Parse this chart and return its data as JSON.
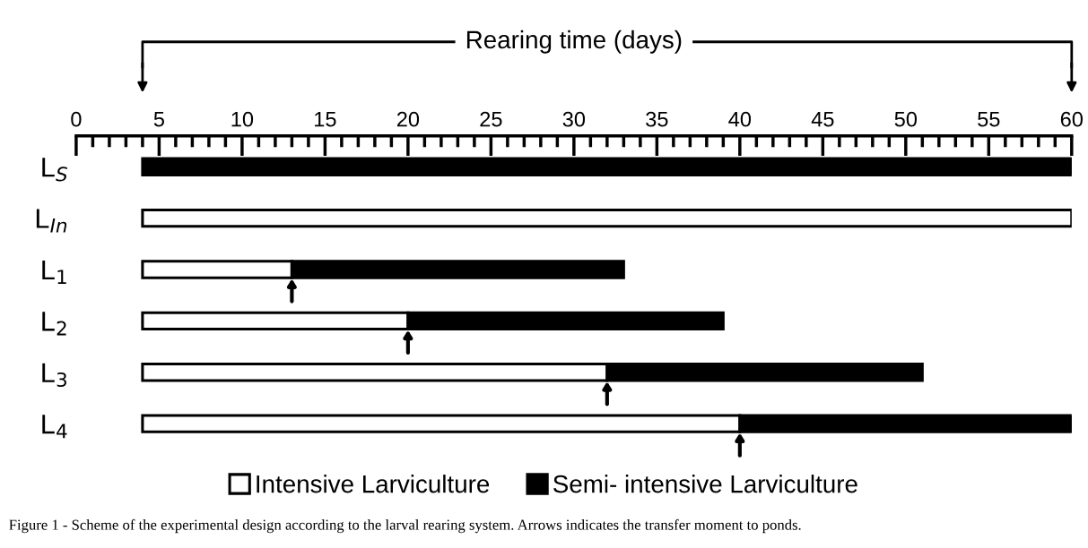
{
  "chart_data": {
    "type": "bar",
    "orientation": "horizontal",
    "xlabel": "Rearing time (days)",
    "categories": [
      "L$_{S}$",
      "L$_{In}$",
      "L$_{1}$",
      "L$_{2}$",
      "L$_{3}$",
      "L$_{4}$"
    ],
    "series": [
      {
        "name": "Intensive Larviculture",
        "color": "#ffffff",
        "base": [
          null,
          4,
          4,
          4,
          4,
          4
        ],
        "values": [
          null,
          56,
          9,
          16,
          28,
          36
        ]
      },
      {
        "name": "Semi- intensive Larviculture",
        "color": "#000000",
        "base": [
          4,
          null,
          13,
          20,
          32,
          40
        ],
        "values": [
          56,
          null,
          20,
          19,
          19,
          20
        ]
      }
    ],
    "xlim": [
      0,
      60
    ],
    "xticks": [
      0,
      5,
      10,
      15,
      20,
      25,
      30,
      35,
      40,
      45,
      50,
      55,
      60
    ],
    "legend": "bottom",
    "grid": false,
    "annotations": [
      "Figure 1 - Scheme of the experimental design according to the larval rearing system. Arrows indicates the transfer moment to ponds."
    ]
  }
}
